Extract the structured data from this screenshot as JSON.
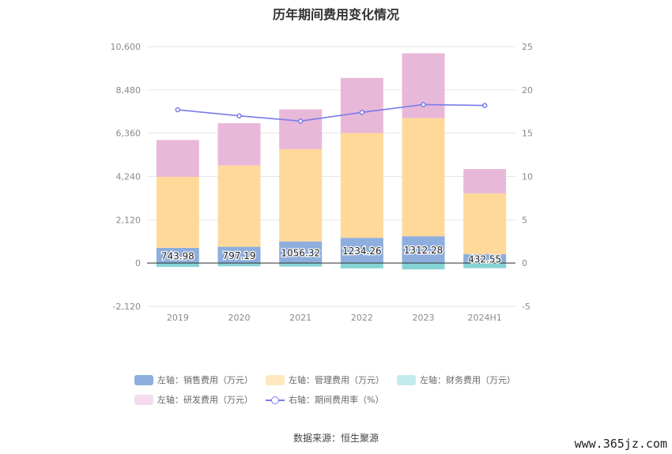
{
  "title": "历年期间费用变化情况",
  "source_text": "数据来源：恒生聚源",
  "watermark": "www.365jz.com",
  "colors": {
    "sales": "#8eaedd",
    "admin": "#ffd99a",
    "finance": "#86d3d6",
    "rnd": "#e8b8d9",
    "rate": "#7b7bea",
    "grid": "#e6e6e6",
    "axis_text": "#8a8a8a"
  },
  "chart_data": {
    "type": "bar",
    "stacked": true,
    "categories": [
      "2019",
      "2020",
      "2021",
      "2022",
      "2023",
      "2024H1"
    ],
    "left_axis": {
      "ylim": [
        -2120,
        10600
      ],
      "ticks": [
        "-2,120",
        "0",
        "2,120",
        "4,240",
        "6,360",
        "8,480",
        "10,600"
      ],
      "tick_values": [
        -2120,
        0,
        2120,
        4240,
        6360,
        8480,
        10600
      ]
    },
    "right_axis": {
      "ylim": [
        -5,
        25
      ],
      "ticks": [
        "-5",
        "0",
        "5",
        "10",
        "15",
        "20",
        "25"
      ],
      "tick_values": [
        -5,
        0,
        5,
        10,
        15,
        20,
        25
      ]
    },
    "series": [
      {
        "name": "左轴：销售费用（万元）",
        "key": "sales",
        "axis": "left",
        "values": [
          743.98,
          797.19,
          1056.32,
          1234.26,
          1312.28,
          432.55
        ],
        "labels": [
          "743.98",
          "797.19",
          "1056.32",
          "1234.26",
          "1312.28",
          "432.55"
        ]
      },
      {
        "name": "左轴：管理费用（万元）",
        "key": "admin",
        "axis": "left",
        "values": [
          3480,
          3980,
          4520,
          5130,
          5790,
          2980
        ]
      },
      {
        "name": "左轴：财务费用（万元）",
        "key": "finance",
        "axis": "left",
        "values": [
          -190,
          -160,
          -170,
          -260,
          -310,
          -250
        ]
      },
      {
        "name": "左轴：研发费用（万元）",
        "key": "rnd",
        "axis": "left",
        "values": [
          1800,
          2070,
          1950,
          2700,
          3170,
          1190
        ]
      },
      {
        "name": "右轴：期间费用率（%）",
        "key": "rate",
        "axis": "right",
        "type": "line",
        "values": [
          17.7,
          17.0,
          16.4,
          17.4,
          18.3,
          18.2
        ]
      }
    ],
    "legend_position": "bottom",
    "grid": true
  }
}
